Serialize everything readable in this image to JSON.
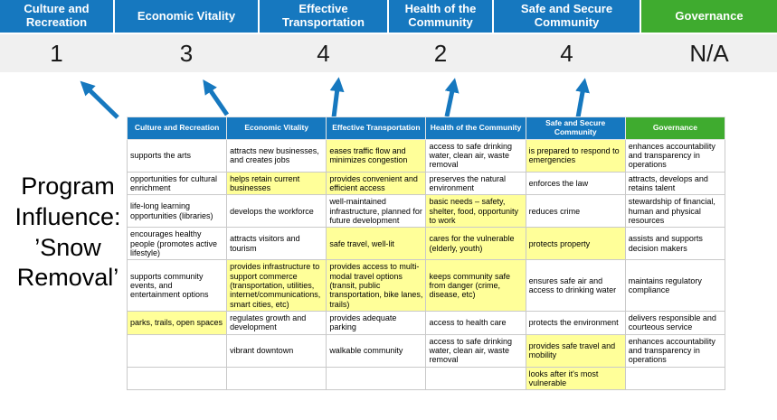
{
  "colors": {
    "blue": "#1678BF",
    "green": "#3FAB2F",
    "highlight": "#FFFF99",
    "score_bg": "#F0F0F0",
    "border": "#C9C9C9"
  },
  "program_label": "Program Influence: ’Snow Removal’",
  "pillars": [
    {
      "label": "Culture and Recreation",
      "score": "1"
    },
    {
      "label": "Economic Vitality",
      "score": "3"
    },
    {
      "label": "Effective Transportation",
      "score": "4"
    },
    {
      "label": "Health of the Community",
      "score": "2"
    },
    {
      "label": "Safe and Secure Community",
      "score": "4"
    },
    {
      "label": "Governance",
      "score": "N/A"
    }
  ],
  "matrix": {
    "headers": [
      "Culture and Recreation",
      "Economic Vitality",
      "Effective Transportation",
      "Health of the Community",
      "Safe and Secure Community",
      "Governance"
    ],
    "rows": [
      [
        {
          "text": "supports the arts",
          "highlight": false
        },
        {
          "text": "attracts new businesses, and creates jobs",
          "highlight": false
        },
        {
          "text": "eases traffic flow and minimizes congestion",
          "highlight": true
        },
        {
          "text": "access to safe drinking water, clean air, waste removal",
          "highlight": false
        },
        {
          "text": "is prepared to respond to emergencies",
          "highlight": true
        },
        {
          "text": "enhances accountability and transparency in operations",
          "highlight": false
        }
      ],
      [
        {
          "text": "opportunities for cultural enrichment",
          "highlight": false
        },
        {
          "text": "helps retain current businesses",
          "highlight": true
        },
        {
          "text": "provides convenient and efficient access",
          "highlight": true
        },
        {
          "text": "preserves the natural environment",
          "highlight": false
        },
        {
          "text": "enforces the law",
          "highlight": false
        },
        {
          "text": "attracts, develops and retains talent",
          "highlight": false
        }
      ],
      [
        {
          "text": "life-long learning opportunities (libraries)",
          "highlight": false
        },
        {
          "text": "develops the workforce",
          "highlight": false
        },
        {
          "text": "well-maintained infrastructure, planned for future development",
          "highlight": false
        },
        {
          "text": "basic needs – safety, shelter, food, opportunity to work",
          "highlight": true
        },
        {
          "text": "reduces crime",
          "highlight": false
        },
        {
          "text": "stewardship of financial, human and physical resources",
          "highlight": false
        }
      ],
      [
        {
          "text": "encourages healthy people (promotes active lifestyle)",
          "highlight": false
        },
        {
          "text": "attracts visitors and tourism",
          "highlight": false
        },
        {
          "text": "safe travel, well-lit",
          "highlight": true
        },
        {
          "text": "cares for the vulnerable (elderly, youth)",
          "highlight": true
        },
        {
          "text": "protects property",
          "highlight": true
        },
        {
          "text": "assists and supports decision makers",
          "highlight": false
        }
      ],
      [
        {
          "text": "supports community events, and entertainment options",
          "highlight": false
        },
        {
          "text": "provides infrastructure to support commerce (transportation, utilities, internet/communications, smart cities, etc)",
          "highlight": true
        },
        {
          "text": "provides access to multi-modal travel options (transit, public transportation, bike lanes, trails)",
          "highlight": true
        },
        {
          "text": "keeps community safe from danger (crime, disease, etc)",
          "highlight": true
        },
        {
          "text": "ensures safe air and access to drinking water",
          "highlight": false
        },
        {
          "text": "maintains regulatory compliance",
          "highlight": false
        }
      ],
      [
        {
          "text": "parks, trails, open spaces",
          "highlight": true
        },
        {
          "text": "regulates growth and development",
          "highlight": false
        },
        {
          "text": "provides adequate parking",
          "highlight": false
        },
        {
          "text": "access to health care",
          "highlight": false
        },
        {
          "text": "protects the environment",
          "highlight": false
        },
        {
          "text": "delivers responsible and courteous service",
          "highlight": false
        }
      ],
      [
        {
          "text": "",
          "highlight": false
        },
        {
          "text": "vibrant downtown",
          "highlight": false
        },
        {
          "text": "walkable community",
          "highlight": false
        },
        {
          "text": "access to safe drinking water, clean air, waste removal",
          "highlight": false
        },
        {
          "text": "provides safe travel and mobility",
          "highlight": true
        },
        {
          "text": "enhances accountability and transparency in operations",
          "highlight": false
        }
      ],
      [
        {
          "text": "",
          "highlight": false
        },
        {
          "text": "",
          "highlight": false
        },
        {
          "text": "",
          "highlight": false
        },
        {
          "text": "",
          "highlight": false
        },
        {
          "text": "looks after it's most vulnerable",
          "highlight": true
        },
        {
          "text": "",
          "highlight": false
        }
      ]
    ]
  }
}
